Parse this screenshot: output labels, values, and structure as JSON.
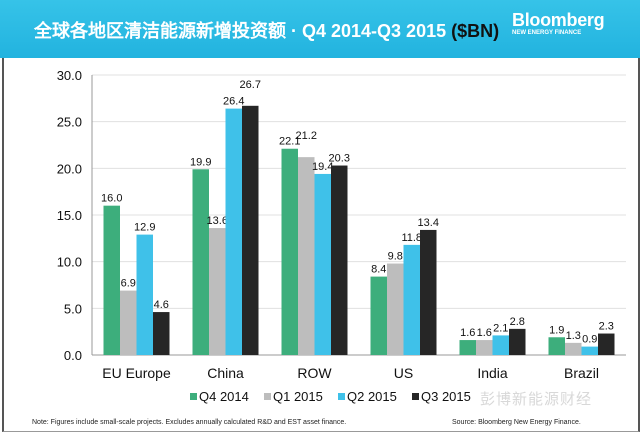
{
  "header": {
    "title": "全球各地区清洁能源新增投资额 · Q4 2014-Q3 2015",
    "unit": "($BN)",
    "logo_main": "Bloomberg",
    "logo_sub": "NEW ENERGY FINANCE"
  },
  "footer": {
    "note": "Note: Figures include small-scale projects. Excludes annually calculated R&D and EST asset finance.",
    "source": "Source: Bloomberg New Energy Finance."
  },
  "watermark": "彭博新能源财经",
  "chart_data": {
    "type": "bar",
    "title": "",
    "xlabel": "",
    "ylabel": "",
    "ylim": [
      0,
      30
    ],
    "yticks": [
      "0.0",
      "5.0",
      "10.0",
      "15.0",
      "20.0",
      "25.0",
      "30.0"
    ],
    "grid": true,
    "legend_position": "bottom",
    "categories": [
      "EU Europe",
      "China",
      "ROW",
      "US",
      "India",
      "Brazil"
    ],
    "series": [
      {
        "name": "Q4 2014",
        "color": "#3dae7c",
        "values": [
          16.0,
          19.9,
          22.1,
          8.4,
          1.6,
          1.9
        ]
      },
      {
        "name": "Q1 2015",
        "color": "#bdbdbd",
        "values": [
          6.9,
          13.6,
          21.2,
          9.8,
          1.6,
          1.3
        ]
      },
      {
        "name": "Q2 2015",
        "color": "#3fc1e9",
        "values": [
          12.9,
          26.4,
          19.4,
          11.8,
          2.1,
          0.9
        ]
      },
      {
        "name": "Q3 2015",
        "color": "#262626",
        "values": [
          4.6,
          26.7,
          20.3,
          13.4,
          2.8,
          2.3
        ]
      }
    ]
  }
}
